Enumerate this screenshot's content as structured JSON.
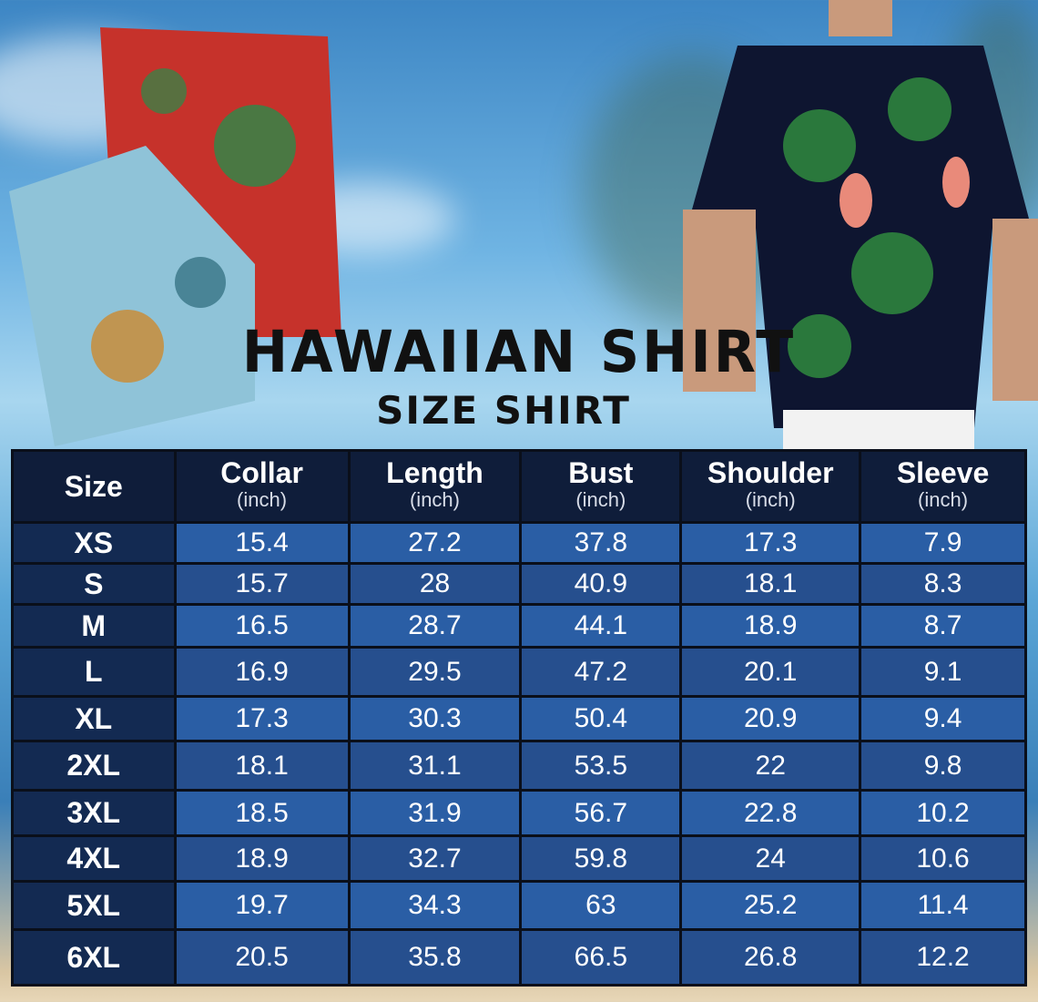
{
  "title": "HAWAIIAN SHIRT",
  "subtitle": "SIZE SHIRT",
  "colors": {
    "header_bg": "#0f1d3a",
    "size_col_bg": "#132a52",
    "cell_bg": "#2a5ea5",
    "text": "#ffffff"
  },
  "table": {
    "columns": [
      {
        "label": "Size",
        "unit": ""
      },
      {
        "label": "Collar",
        "unit": "(inch)"
      },
      {
        "label": "Length",
        "unit": "(inch)"
      },
      {
        "label": "Bust",
        "unit": "(inch)"
      },
      {
        "label": "Shoulder",
        "unit": "(inch)"
      },
      {
        "label": "Sleeve",
        "unit": "(inch)"
      }
    ],
    "rows": [
      [
        "XS",
        "15.4",
        "27.2",
        "37.8",
        "17.3",
        "7.9"
      ],
      [
        "S",
        "15.7",
        "28",
        "40.9",
        "18.1",
        "8.3"
      ],
      [
        "M",
        "16.5",
        "28.7",
        "44.1",
        "18.9",
        "8.7"
      ],
      [
        "L",
        "16.9",
        "29.5",
        "47.2",
        "20.1",
        "9.1"
      ],
      [
        "XL",
        "17.3",
        "30.3",
        "50.4",
        "20.9",
        "9.4"
      ],
      [
        "2XL",
        "18.1",
        "31.1",
        "53.5",
        "22",
        "9.8"
      ],
      [
        "3XL",
        "18.5",
        "31.9",
        "56.7",
        "22.8",
        "10.2"
      ],
      [
        "4XL",
        "18.9",
        "32.7",
        "59.8",
        "24",
        "10.6"
      ],
      [
        "5XL",
        "19.7",
        "34.3",
        "63",
        "25.2",
        "11.4"
      ],
      [
        "6XL",
        "20.5",
        "35.8",
        "66.5",
        "26.8",
        "12.2"
      ]
    ]
  }
}
